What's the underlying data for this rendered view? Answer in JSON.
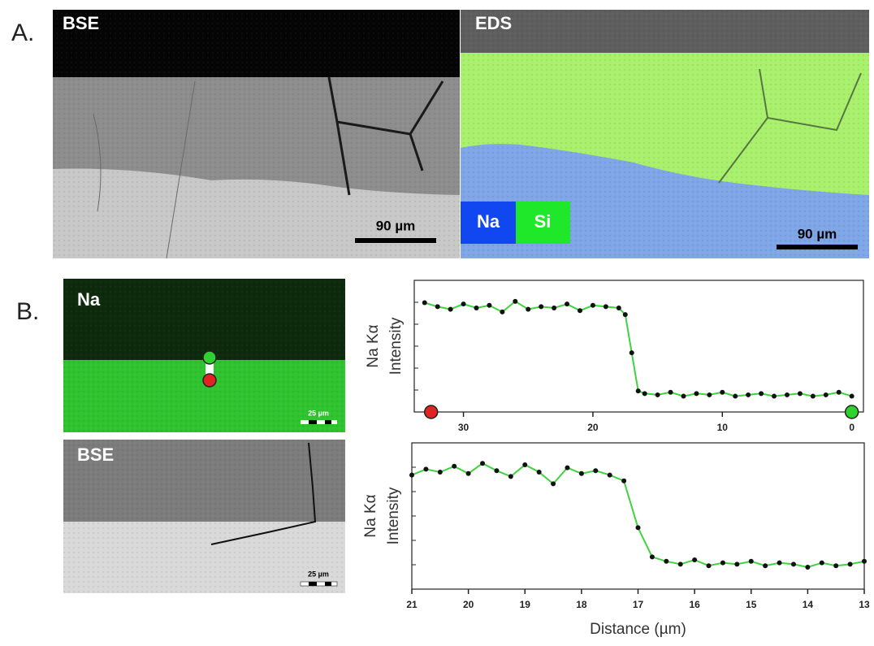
{
  "figure": {
    "panel_a": {
      "label": "A.",
      "bse_label": "BSE",
      "eds_label": "EDS",
      "bse_scale": "90 µm",
      "eds_scale": "90 µm",
      "legend_na": "Na",
      "legend_si": "Si"
    },
    "panel_b": {
      "label": "B.",
      "na_label": "Na",
      "na_scale": "25 µm",
      "bse_label": "BSE",
      "bse_scale": "25 µm"
    }
  },
  "chart_data": [
    {
      "type": "line",
      "ylabel": [
        "Na Kα",
        "Intensity"
      ],
      "x": [
        33,
        32,
        31,
        30,
        29,
        28,
        27,
        26,
        25,
        24,
        23,
        22,
        21,
        20,
        19,
        18,
        17.5,
        17,
        16.5,
        16,
        15,
        14,
        13,
        12,
        11,
        10,
        9,
        8,
        7,
        6,
        5,
        4,
        3,
        2,
        1,
        0
      ],
      "values": [
        83,
        80,
        78,
        82,
        79,
        81,
        76,
        84,
        78,
        80,
        79,
        82,
        77,
        81,
        80,
        79,
        74,
        45,
        16,
        14,
        13,
        15,
        12,
        14,
        13,
        15,
        12,
        13,
        14,
        12,
        13,
        14,
        12,
        13,
        15,
        12
      ],
      "line_color": "#3fd43f",
      "marker_color": "#111111",
      "xlim": [
        33.8,
        -0.9
      ],
      "ylim": [
        0,
        100
      ],
      "xticks": [
        30,
        20,
        10,
        0
      ],
      "end_markers": [
        {
          "x": 32.5,
          "color": "#e02424"
        },
        {
          "x": 0,
          "color": "#2ed12e"
        }
      ]
    },
    {
      "type": "line",
      "ylabel": [
        "Na Kα",
        "Intensity"
      ],
      "xlabel": "Distance (µm)",
      "x": [
        21,
        20.75,
        20.5,
        20.25,
        20,
        19.75,
        19.5,
        19.25,
        19,
        18.75,
        18.5,
        18.25,
        18,
        17.75,
        17.5,
        17.25,
        17,
        16.75,
        16.5,
        16.25,
        16,
        15.75,
        15.5,
        15.25,
        15,
        14.75,
        14.5,
        14.25,
        14,
        13.75,
        13.5,
        13.25,
        13
      ],
      "values": [
        78,
        82,
        80,
        84,
        79,
        86,
        81,
        77,
        85,
        80,
        72,
        83,
        79,
        81,
        78,
        74,
        42,
        22,
        19,
        17,
        20,
        16,
        18,
        17,
        19,
        16,
        18,
        17,
        15,
        18,
        16,
        17,
        19
      ],
      "line_color": "#3fd43f",
      "marker_color": "#111111",
      "xlim": [
        21,
        13
      ],
      "ylim": [
        0,
        100
      ],
      "xticks": [
        21,
        20,
        19,
        18,
        17,
        16,
        15,
        14,
        13
      ]
    }
  ]
}
